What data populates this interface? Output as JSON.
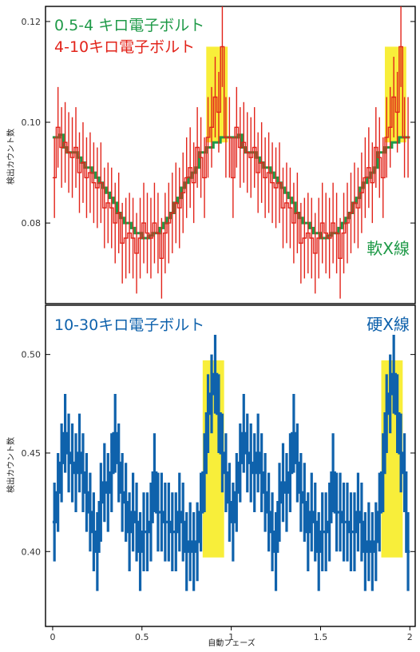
{
  "chart_data": [
    {
      "type": "line",
      "title": "",
      "xlabel": "",
      "ylabel": "検出カウント数",
      "xlim": [
        -0.04,
        2.03
      ],
      "ylim": [
        0.064,
        0.123
      ],
      "yticks": [
        0.08,
        0.1,
        0.12
      ],
      "ytick_labels": [
        "0.08",
        "0.10",
        "0.12"
      ],
      "band_label": "軟X線",
      "highlight_color": "#f8ee3a",
      "highlights": [
        {
          "x0": 0.86,
          "x1": 0.98,
          "y0": 0.096,
          "y1": 0.115
        },
        {
          "x0": 1.86,
          "x1": 1.98,
          "y0": 0.096,
          "y1": 0.115
        }
      ],
      "series": [
        {
          "name": "0.5-4 キロ電子ボルト",
          "color": "#1f9a48",
          "x": [
            0.0,
            0.02,
            0.04,
            0.06,
            0.08,
            0.1,
            0.12,
            0.14,
            0.16,
            0.18,
            0.2,
            0.22,
            0.24,
            0.26,
            0.28,
            0.3,
            0.32,
            0.34,
            0.36,
            0.38,
            0.4,
            0.42,
            0.44,
            0.46,
            0.48,
            0.5,
            0.52,
            0.54,
            0.56,
            0.58,
            0.6,
            0.62,
            0.64,
            0.66,
            0.68,
            0.7,
            0.72,
            0.74,
            0.76,
            0.78,
            0.8,
            0.82,
            0.84,
            0.86,
            0.88,
            0.9,
            0.92,
            0.94,
            0.96,
            0.98,
            1.0,
            1.02,
            1.04,
            1.06,
            1.08,
            1.1,
            1.12,
            1.14,
            1.16,
            1.18,
            1.2,
            1.22,
            1.24,
            1.26,
            1.28,
            1.3,
            1.32,
            1.34,
            1.36,
            1.38,
            1.4,
            1.42,
            1.44,
            1.46,
            1.48,
            1.5,
            1.52,
            1.54,
            1.56,
            1.58,
            1.6,
            1.62,
            1.64,
            1.66,
            1.68,
            1.7,
            1.72,
            1.74,
            1.76,
            1.78,
            1.8,
            1.82,
            1.84,
            1.86,
            1.88,
            1.9,
            1.92,
            1.94,
            1.96,
            1.98
          ],
          "values": [
            0.097,
            0.097,
            0.0975,
            0.095,
            0.094,
            0.094,
            0.094,
            0.093,
            0.092,
            0.091,
            0.091,
            0.09,
            0.089,
            0.088,
            0.087,
            0.086,
            0.085,
            0.084,
            0.082,
            0.081,
            0.08,
            0.08,
            0.079,
            0.078,
            0.078,
            0.077,
            0.077,
            0.0775,
            0.078,
            0.078,
            0.079,
            0.08,
            0.081,
            0.082,
            0.084,
            0.085,
            0.087,
            0.088,
            0.089,
            0.09,
            0.091,
            0.094,
            0.094,
            0.095,
            0.095,
            0.096,
            0.096,
            0.097,
            0.097,
            0.097,
            0.097,
            0.097,
            0.0975,
            0.095,
            0.094,
            0.094,
            0.094,
            0.093,
            0.092,
            0.091,
            0.091,
            0.09,
            0.089,
            0.088,
            0.087,
            0.086,
            0.085,
            0.084,
            0.082,
            0.081,
            0.08,
            0.08,
            0.079,
            0.078,
            0.078,
            0.077,
            0.077,
            0.0775,
            0.078,
            0.078,
            0.079,
            0.08,
            0.081,
            0.082,
            0.084,
            0.085,
            0.087,
            0.088,
            0.089,
            0.09,
            0.091,
            0.094,
            0.094,
            0.095,
            0.095,
            0.096,
            0.096,
            0.097,
            0.097,
            0.097
          ],
          "errors": []
        },
        {
          "name": "4-10キロ電子ボルト",
          "color": "#e2231a",
          "x": [
            0.0,
            0.02,
            0.04,
            0.06,
            0.08,
            0.1,
            0.12,
            0.14,
            0.16,
            0.18,
            0.2,
            0.22,
            0.24,
            0.26,
            0.28,
            0.3,
            0.32,
            0.34,
            0.36,
            0.38,
            0.4,
            0.42,
            0.44,
            0.46,
            0.48,
            0.5,
            0.52,
            0.54,
            0.56,
            0.58,
            0.6,
            0.62,
            0.64,
            0.66,
            0.68,
            0.7,
            0.72,
            0.74,
            0.76,
            0.78,
            0.8,
            0.82,
            0.84,
            0.86,
            0.88,
            0.9,
            0.92,
            0.94,
            0.96,
            0.98,
            1.0,
            1.02,
            1.04,
            1.06,
            1.08,
            1.1,
            1.12,
            1.14,
            1.16,
            1.18,
            1.2,
            1.22,
            1.24,
            1.26,
            1.28,
            1.3,
            1.32,
            1.34,
            1.36,
            1.38,
            1.4,
            1.42,
            1.44,
            1.46,
            1.48,
            1.5,
            1.52,
            1.54,
            1.56,
            1.58,
            1.6,
            1.62,
            1.64,
            1.66,
            1.68,
            1.7,
            1.72,
            1.74,
            1.76,
            1.78,
            1.8,
            1.82,
            1.84,
            1.86,
            1.88,
            1.9,
            1.92,
            1.94,
            1.96,
            1.98
          ],
          "values": [
            0.089,
            0.099,
            0.095,
            0.096,
            0.094,
            0.093,
            0.095,
            0.09,
            0.092,
            0.089,
            0.09,
            0.088,
            0.087,
            0.088,
            0.083,
            0.084,
            0.083,
            0.08,
            0.082,
            0.076,
            0.077,
            0.078,
            0.077,
            0.074,
            0.077,
            0.08,
            0.078,
            0.077,
            0.08,
            0.078,
            0.073,
            0.078,
            0.08,
            0.082,
            0.084,
            0.083,
            0.086,
            0.089,
            0.091,
            0.088,
            0.095,
            0.093,
            0.089,
            0.097,
            0.099,
            0.105,
            0.102,
            0.115,
            0.097,
            0.097,
            0.089,
            0.099,
            0.095,
            0.096,
            0.094,
            0.093,
            0.095,
            0.09,
            0.092,
            0.089,
            0.09,
            0.088,
            0.087,
            0.088,
            0.083,
            0.084,
            0.083,
            0.08,
            0.082,
            0.076,
            0.077,
            0.078,
            0.077,
            0.074,
            0.077,
            0.08,
            0.078,
            0.077,
            0.08,
            0.078,
            0.073,
            0.078,
            0.08,
            0.082,
            0.084,
            0.083,
            0.086,
            0.089,
            0.091,
            0.088,
            0.095,
            0.093,
            0.089,
            0.097,
            0.099,
            0.105,
            0.102,
            0.115,
            0.097,
            0.097
          ],
          "errors": [
            0.008,
            0.008,
            0.008,
            0.008,
            0.008,
            0.008,
            0.008,
            0.008,
            0.008,
            0.008,
            0.008,
            0.008,
            0.008,
            0.008,
            0.008,
            0.008,
            0.008,
            0.008,
            0.008,
            0.008,
            0.008,
            0.008,
            0.008,
            0.008,
            0.008,
            0.008,
            0.008,
            0.008,
            0.008,
            0.008,
            0.008,
            0.008,
            0.008,
            0.008,
            0.008,
            0.008,
            0.008,
            0.008,
            0.008,
            0.008,
            0.008,
            0.008,
            0.008,
            0.008,
            0.008,
            0.008,
            0.008,
            0.008,
            0.008,
            0.008,
            0.008,
            0.008,
            0.008,
            0.008,
            0.008,
            0.008,
            0.008,
            0.008,
            0.008,
            0.008,
            0.008,
            0.008,
            0.008,
            0.008,
            0.008,
            0.008,
            0.008,
            0.008,
            0.008,
            0.008,
            0.008,
            0.008,
            0.008,
            0.008,
            0.008,
            0.008,
            0.008,
            0.008,
            0.008,
            0.008,
            0.008,
            0.008,
            0.008,
            0.008,
            0.008,
            0.008,
            0.008,
            0.008,
            0.008,
            0.008,
            0.008,
            0.008,
            0.008,
            0.008,
            0.008,
            0.008,
            0.008,
            0.008,
            0.008,
            0.008
          ]
        }
      ]
    },
    {
      "type": "line",
      "title": "",
      "xlabel": "自動フェーズ",
      "ylabel": "検出カウント数",
      "xlim": [
        -0.04,
        2.03
      ],
      "ylim": [
        0.362,
        0.525
      ],
      "xticks": [
        0,
        0.5,
        1,
        1.5,
        2
      ],
      "xtick_labels": [
        "0",
        "0.5",
        "1",
        "1.5",
        "2"
      ],
      "yticks": [
        0.4,
        0.45,
        0.5
      ],
      "ytick_labels": [
        "0.40",
        "0.45",
        "0.50"
      ],
      "band_label": "硬X線",
      "highlight_color": "#f8ee3a",
      "highlights": [
        {
          "x0": 0.84,
          "x1": 0.96,
          "y0": 0.397,
          "y1": 0.497
        },
        {
          "x0": 1.84,
          "x1": 1.96,
          "y0": 0.397,
          "y1": 0.497
        }
      ],
      "series": [
        {
          "name": "10-30キロ電子ボルト",
          "color": "#0f62ac",
          "x": [
            0.0,
            0.02,
            0.04,
            0.06,
            0.08,
            0.1,
            0.12,
            0.14,
            0.16,
            0.18,
            0.2,
            0.22,
            0.24,
            0.26,
            0.28,
            0.3,
            0.32,
            0.34,
            0.36,
            0.38,
            0.4,
            0.42,
            0.44,
            0.46,
            0.48,
            0.5,
            0.52,
            0.54,
            0.56,
            0.58,
            0.6,
            0.62,
            0.64,
            0.66,
            0.68,
            0.7,
            0.72,
            0.74,
            0.76,
            0.78,
            0.8,
            0.82,
            0.84,
            0.86,
            0.88,
            0.9,
            0.92,
            0.94,
            0.96,
            0.98,
            1.0,
            1.02,
            1.04,
            1.06,
            1.08,
            1.1,
            1.12,
            1.14,
            1.16,
            1.18,
            1.2,
            1.22,
            1.24,
            1.26,
            1.28,
            1.3,
            1.32,
            1.34,
            1.36,
            1.38,
            1.4,
            1.42,
            1.44,
            1.46,
            1.48,
            1.5,
            1.52,
            1.54,
            1.56,
            1.58,
            1.6,
            1.62,
            1.64,
            1.66,
            1.68,
            1.7,
            1.72,
            1.74,
            1.76,
            1.78,
            1.8,
            1.82,
            1.84,
            1.86,
            1.88,
            1.9,
            1.92,
            1.94,
            1.96,
            1.98
          ],
          "values": [
            0.415,
            0.43,
            0.445,
            0.46,
            0.45,
            0.445,
            0.44,
            0.45,
            0.44,
            0.43,
            0.42,
            0.41,
            0.4,
            0.425,
            0.435,
            0.43,
            0.44,
            0.46,
            0.445,
            0.43,
            0.425,
            0.41,
            0.42,
            0.415,
            0.4,
            0.41,
            0.41,
            0.415,
            0.44,
            0.42,
            0.42,
            0.415,
            0.415,
            0.41,
            0.41,
            0.42,
            0.415,
            0.4,
            0.405,
            0.4,
            0.405,
            0.42,
            0.44,
            0.47,
            0.48,
            0.49,
            0.47,
            0.45,
            0.44,
            0.425,
            0.415,
            0.43,
            0.445,
            0.46,
            0.45,
            0.445,
            0.44,
            0.45,
            0.44,
            0.43,
            0.42,
            0.41,
            0.4,
            0.425,
            0.435,
            0.43,
            0.44,
            0.46,
            0.445,
            0.43,
            0.425,
            0.41,
            0.42,
            0.415,
            0.4,
            0.41,
            0.41,
            0.415,
            0.44,
            0.42,
            0.42,
            0.415,
            0.415,
            0.41,
            0.41,
            0.42,
            0.415,
            0.4,
            0.405,
            0.4,
            0.405,
            0.42,
            0.44,
            0.47,
            0.48,
            0.49,
            0.47,
            0.45,
            0.44,
            0.4
          ],
          "errors": [
            0.02,
            0.02,
            0.02,
            0.02,
            0.02,
            0.02,
            0.02,
            0.02,
            0.02,
            0.02,
            0.02,
            0.02,
            0.02,
            0.02,
            0.02,
            0.02,
            0.02,
            0.02,
            0.02,
            0.02,
            0.02,
            0.02,
            0.02,
            0.02,
            0.02,
            0.02,
            0.02,
            0.02,
            0.02,
            0.02,
            0.02,
            0.02,
            0.02,
            0.02,
            0.02,
            0.02,
            0.02,
            0.02,
            0.02,
            0.02,
            0.02,
            0.02,
            0.02,
            0.02,
            0.02,
            0.02,
            0.02,
            0.02,
            0.02,
            0.02,
            0.02,
            0.02,
            0.02,
            0.02,
            0.02,
            0.02,
            0.02,
            0.02,
            0.02,
            0.02,
            0.02,
            0.02,
            0.02,
            0.02,
            0.02,
            0.02,
            0.02,
            0.02,
            0.02,
            0.02,
            0.02,
            0.02,
            0.02,
            0.02,
            0.02,
            0.02,
            0.02,
            0.02,
            0.02,
            0.02,
            0.02,
            0.02,
            0.02,
            0.02,
            0.02,
            0.02,
            0.02,
            0.02,
            0.02,
            0.02,
            0.02,
            0.02,
            0.02,
            0.02,
            0.02,
            0.02,
            0.02,
            0.02,
            0.02,
            0.02
          ]
        }
      ]
    }
  ]
}
